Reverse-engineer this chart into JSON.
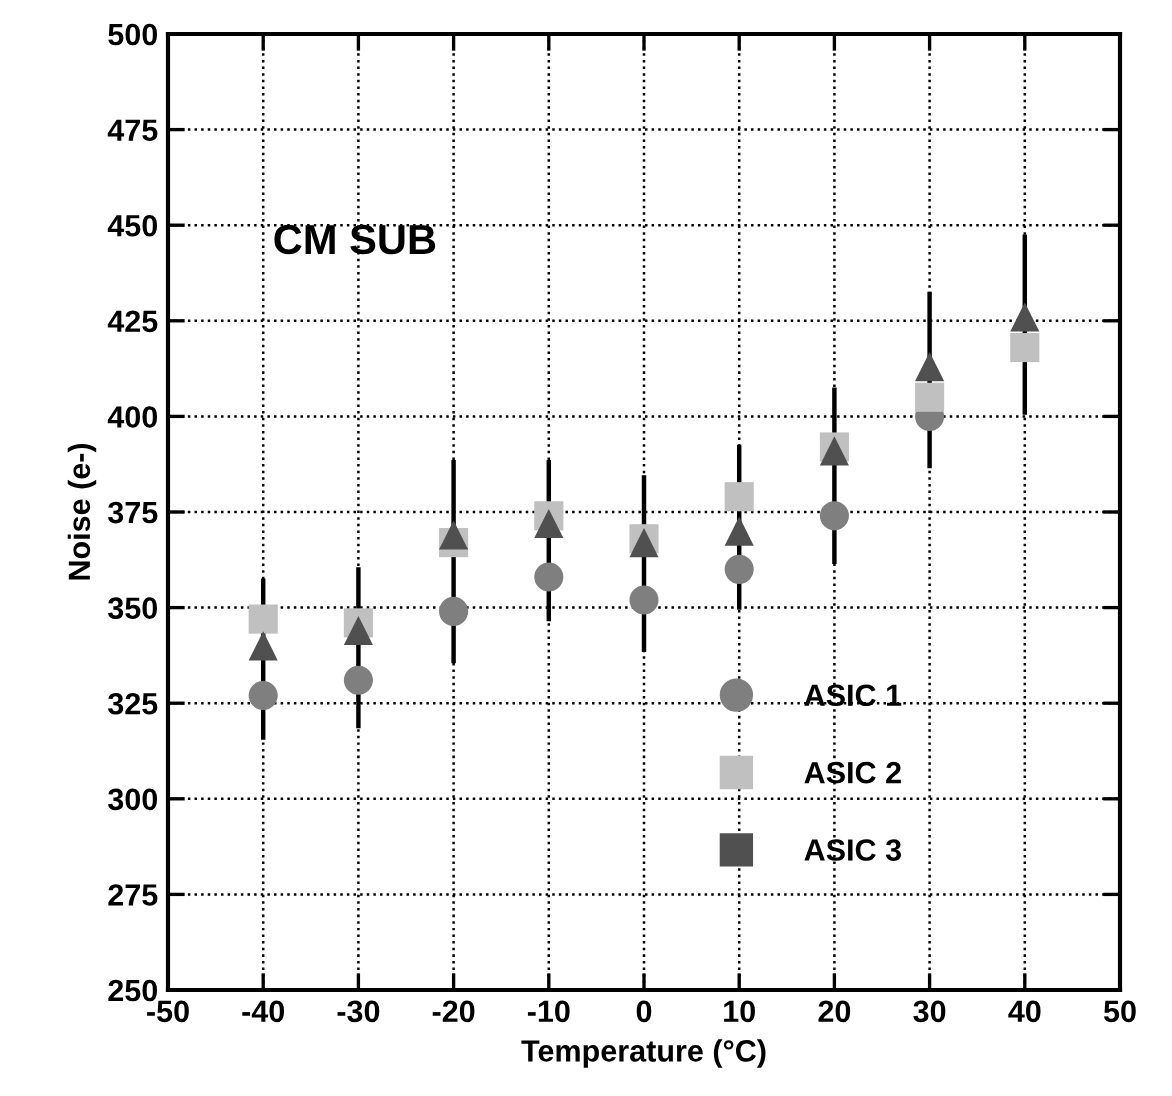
{
  "chart_data": {
    "type": "scatter",
    "xlabel": "Temperature (°C)",
    "ylabel": "Noise (e-)",
    "annotations": [
      "CM SUB"
    ],
    "x": [
      -40,
      -30,
      -20,
      -10,
      0,
      10,
      20,
      30,
      40
    ],
    "xlim": [
      -50,
      50
    ],
    "xticks": [
      -50,
      -40,
      -30,
      -20,
      -10,
      0,
      10,
      20,
      30,
      40,
      50
    ],
    "ylim": [
      250,
      500
    ],
    "yticks": [
      250,
      275,
      300,
      325,
      350,
      375,
      400,
      425,
      450,
      475,
      500
    ],
    "grid": true,
    "legend": "bottom right",
    "line_style": "dotted",
    "series": [
      {
        "name": "ASIC 1",
        "color": "#7f7f7f",
        "marker": "circle",
        "values": [
          327,
          331,
          349,
          358,
          352,
          360,
          374,
          400,
          null
        ]
      },
      {
        "name": "ASIC 2",
        "color": "#c0c0c0",
        "marker": "square",
        "values": [
          347,
          346,
          367,
          374,
          368,
          379,
          392,
          405,
          418
        ]
      },
      {
        "name": "ASIC 3",
        "color": "#505050",
        "marker": "triangle",
        "values": [
          340,
          344,
          369,
          372,
          367,
          370,
          391,
          413,
          426
        ],
        "errors": [
          [
            316,
            357
          ],
          [
            319,
            360
          ],
          [
            336,
            388
          ],
          [
            347,
            388
          ],
          [
            339,
            384
          ],
          [
            350,
            392
          ],
          [
            362,
            407
          ],
          [
            387,
            432
          ],
          [
            401,
            447
          ]
        ]
      }
    ]
  }
}
